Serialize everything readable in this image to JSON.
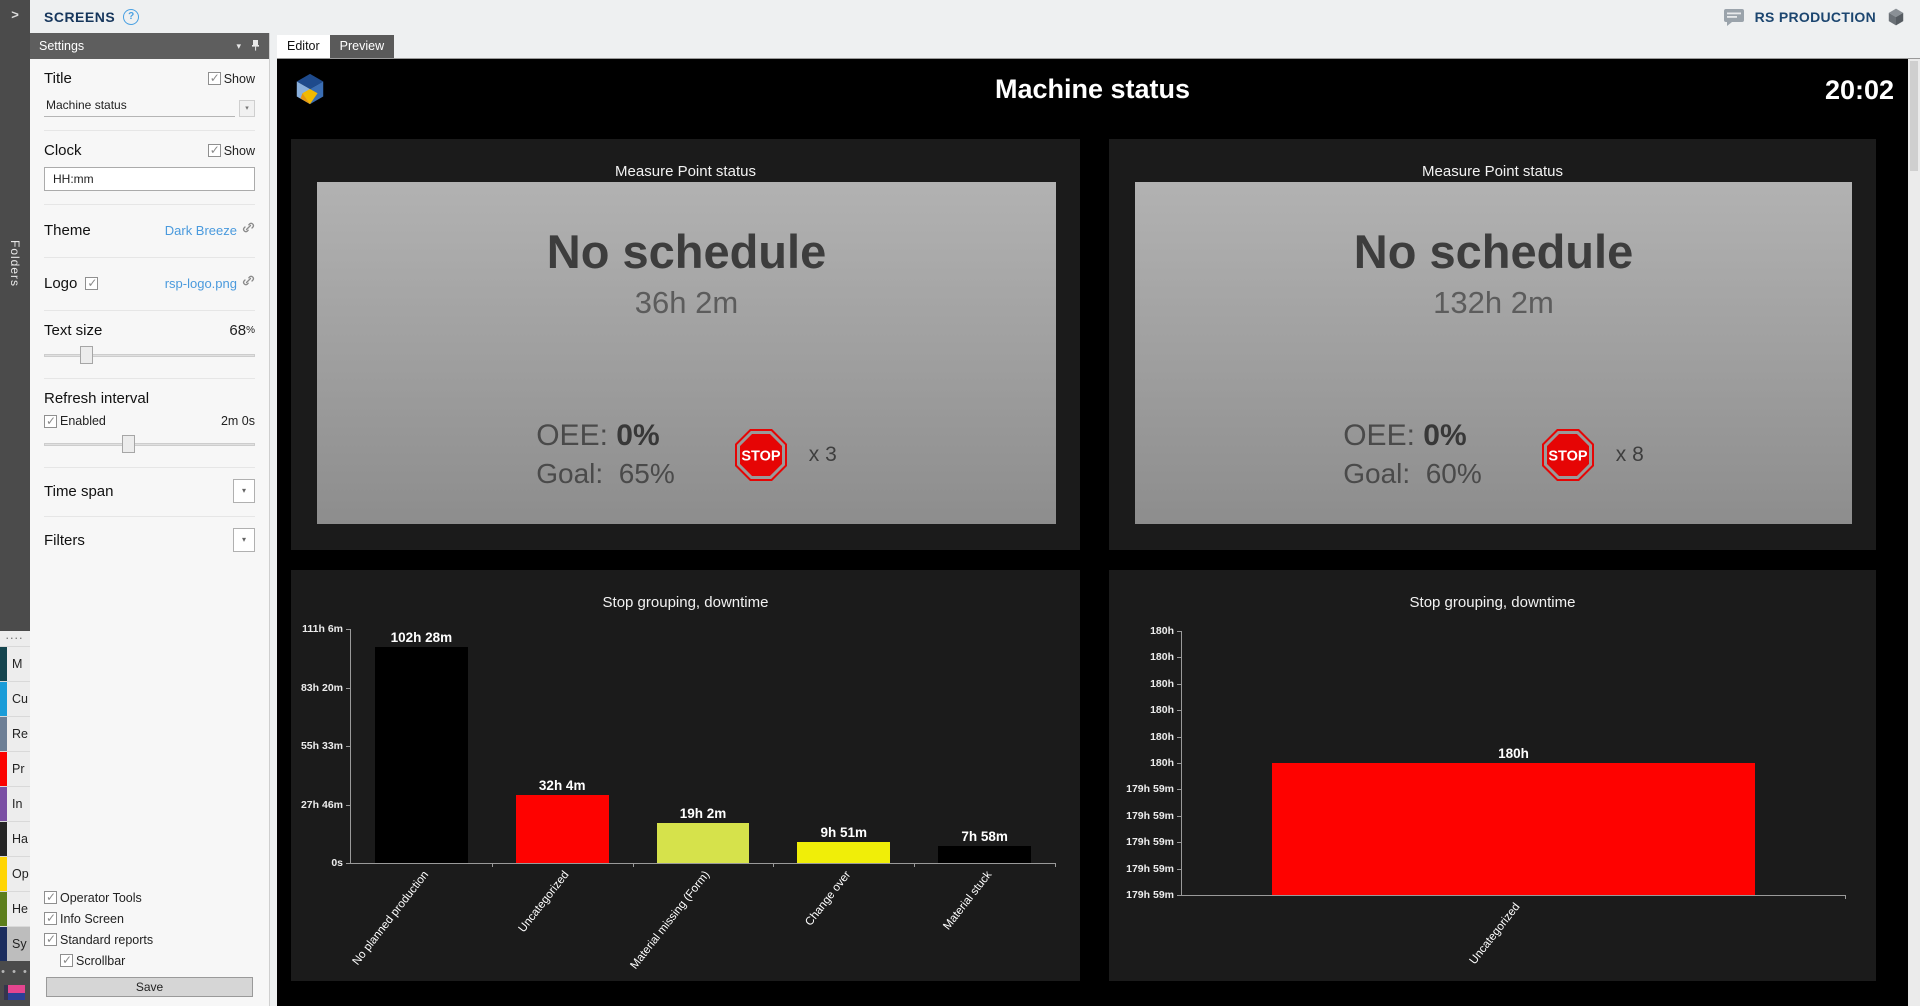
{
  "topbar": {
    "app_title": "SCREENS",
    "brand": "RS PRODUCTION"
  },
  "left_rail": {
    "expand_chevron": ">",
    "folders_label": "Folders",
    "grip": "....",
    "overflow": "• • •",
    "items": [
      {
        "label": "M",
        "color": "#15454f",
        "selected": false
      },
      {
        "label": "Cu",
        "color": "#1a9cd8",
        "selected": false
      },
      {
        "label": "Re",
        "color": "#6d7f96",
        "selected": false
      },
      {
        "label": "Pr",
        "color": "#fb0200",
        "selected": false
      },
      {
        "label": "In",
        "color": "#7a4fa3",
        "selected": false
      },
      {
        "label": "Ha",
        "color": "#252525",
        "selected": false
      },
      {
        "label": "Op",
        "color": "#ffd503",
        "selected": false
      },
      {
        "label": "He",
        "color": "#5c7e1c",
        "selected": false
      },
      {
        "label": "Sy",
        "color": "#1b2d5e",
        "selected": true
      }
    ]
  },
  "settings": {
    "header": "Settings",
    "title_label": "Title",
    "title_show_label": "Show",
    "title_show_checked": true,
    "title_value": "Machine status",
    "clock_label": "Clock",
    "clock_show_label": "Show",
    "clock_show_checked": true,
    "clock_value": "HH:mm",
    "theme_label": "Theme",
    "theme_value": "Dark Breeze",
    "logo_label": "Logo",
    "logo_checked": true,
    "logo_value": "rsp-logo.png",
    "text_size_label": "Text size",
    "text_size_value": "68",
    "text_size_unit": "%",
    "refresh_label": "Refresh interval",
    "refresh_enabled_label": "Enabled",
    "refresh_enabled_checked": true,
    "refresh_value": "2m 0s",
    "time_span_label": "Time span",
    "filters_label": "Filters",
    "toggles": [
      {
        "label": "Operator Tools",
        "checked": true,
        "indent": false
      },
      {
        "label": "Info Screen",
        "checked": true,
        "indent": false
      },
      {
        "label": "Standard reports",
        "checked": true,
        "indent": false
      },
      {
        "label": "Scrollbar",
        "checked": true,
        "indent": true
      }
    ],
    "save_label": "Save"
  },
  "tabs": {
    "editor": "Editor",
    "preview": "Preview"
  },
  "dashboard": {
    "title": "Machine status",
    "clock": "20:02",
    "panels": [
      {
        "title": "Measure Point status",
        "headline": "No schedule",
        "duration": "36h 2m",
        "oee_label": "OEE:",
        "oee_value": "0%",
        "goal_label": "Goal:",
        "goal_value": "65%",
        "stop_sign": "STOP",
        "stop_count": "x 3"
      },
      {
        "title": "Measure Point status",
        "headline": "No schedule",
        "duration": "132h 2m",
        "oee_label": "OEE:",
        "oee_value": "0%",
        "goal_label": "Goal:",
        "goal_value": "60%",
        "stop_sign": "STOP",
        "stop_count": "x 8"
      }
    ]
  },
  "chart_data": [
    {
      "type": "bar",
      "title": "Stop grouping, downtime",
      "categories": [
        "No planned production",
        "Uncategorized",
        "Material missing (Form)",
        "Change over",
        "Material stuck"
      ],
      "values_hours": [
        102.467,
        32.067,
        19.033,
        9.85,
        7.967
      ],
      "value_labels": [
        "102h 28m",
        "32h 4m",
        "19h 2m",
        "9h 51m",
        "7h 58m"
      ],
      "bar_colors": [
        "#000000",
        "#fe0200",
        "#d6e24b",
        "#f0ee08",
        "#000000"
      ],
      "ylim_hours": [
        0,
        111.1
      ],
      "yticks": [
        "111h 6m",
        "83h 20m",
        "55h 33m",
        "27h 46m",
        "0s"
      ],
      "legend": false,
      "grid": false
    },
    {
      "type": "bar",
      "title": "Stop grouping, downtime",
      "categories": [
        "Uncategorized"
      ],
      "values_hours": [
        180
      ],
      "value_labels": [
        "180h"
      ],
      "bar_colors": [
        "#fe0200"
      ],
      "height_fractions": [
        0.5
      ],
      "yticks": [
        "180h",
        "180h",
        "180h",
        "180h",
        "180h",
        "180h",
        "179h 59m",
        "179h 59m",
        "179h 59m",
        "179h 59m",
        "179h 59m"
      ],
      "axis_note": "y-axis zoomed to range 179h 59m - 180h",
      "legend": false,
      "grid": false
    }
  ]
}
